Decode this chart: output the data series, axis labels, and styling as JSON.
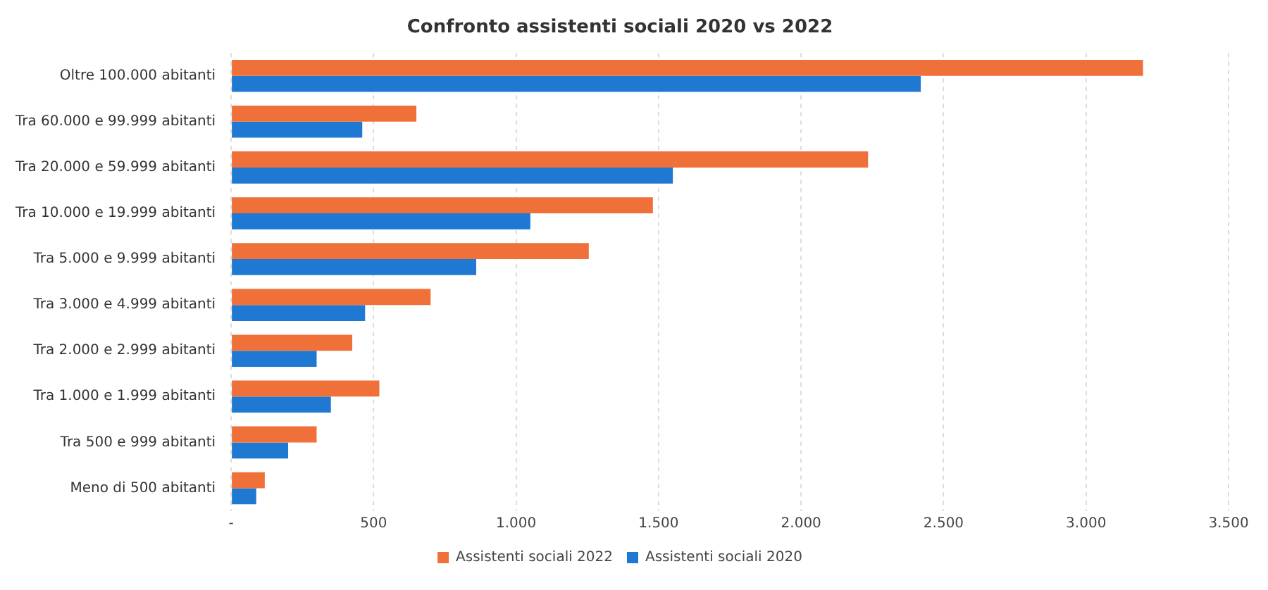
{
  "chart_data": {
    "type": "bar",
    "orientation": "horizontal",
    "title": "Confronto assistenti sociali 2020 vs 2022",
    "categories": [
      "Oltre 100.000 abitanti",
      "Tra 60.000 e 99.999 abitanti",
      "Tra 20.000 e 59.999 abitanti",
      "Tra 10.000 e 19.999 abitanti",
      "Tra 5.000 e 9.999 abitanti",
      "Tra 3.000 e 4.999 abitanti",
      "Tra 2.000 e 2.999 abitanti",
      "Tra 1.000 e 1.999 abitanti",
      "Tra 500 e 999 abitanti",
      "Meno di 500 abitanti"
    ],
    "series": [
      {
        "name": "Assistenti sociali 2022",
        "color": "#f0703a",
        "values": [
          3200,
          650,
          2235,
          1480,
          1255,
          700,
          425,
          520,
          300,
          118
        ]
      },
      {
        "name": "Assistenti sociali 2020",
        "color": "#1f78d1",
        "values": [
          2420,
          460,
          1550,
          1050,
          860,
          470,
          300,
          350,
          200,
          88
        ]
      }
    ],
    "xlim": [
      0,
      3500
    ],
    "xticks": [
      {
        "value": 0,
        "label": "-"
      },
      500,
      {
        "value": 1000,
        "label": "1.000"
      },
      {
        "value": 1500,
        "label": "1.500"
      },
      {
        "value": 2000,
        "label": "2.000"
      },
      {
        "value": 2500,
        "label": "2.500"
      },
      {
        "value": 3000,
        "label": "3.000"
      },
      {
        "value": 3500,
        "label": "3.500"
      }
    ],
    "grid": "x",
    "legend": "bottom"
  }
}
